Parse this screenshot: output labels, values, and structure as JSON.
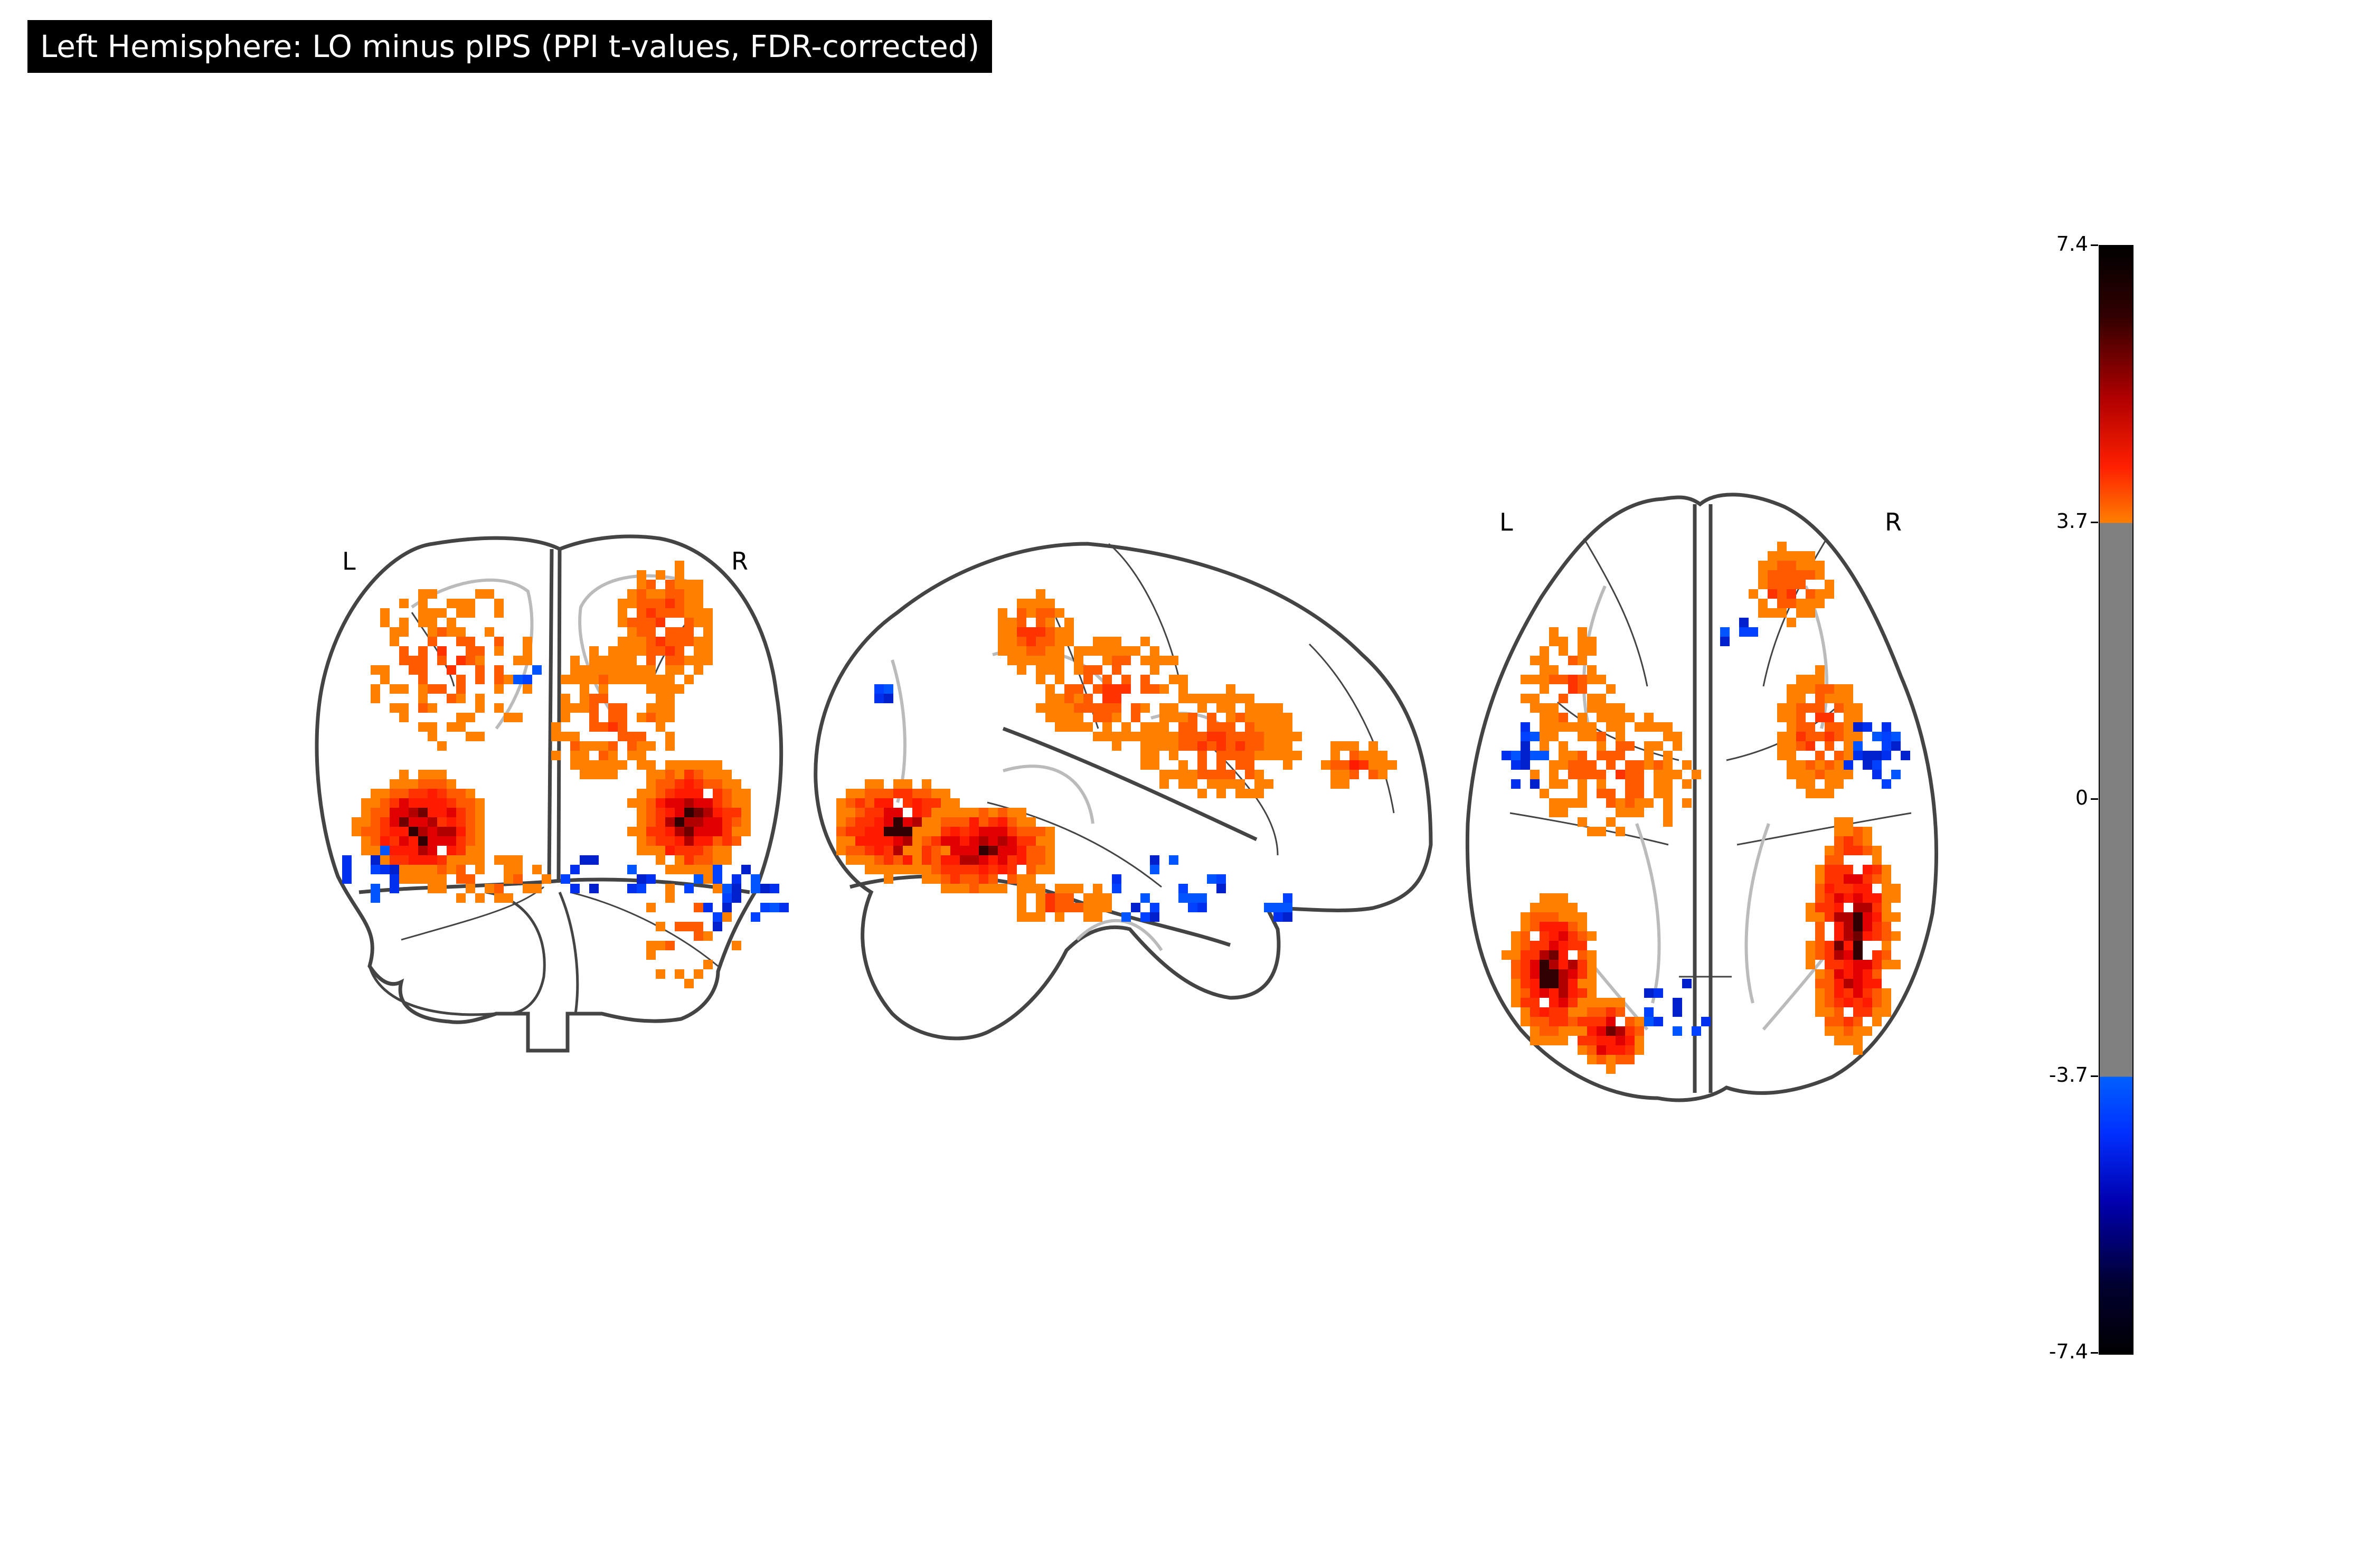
{
  "title": "Left Hemisphere: LO minus pIPS (PPI t-values, FDR-corrected)",
  "views": [
    {
      "id": "coronal",
      "orientation_labels": [
        "L",
        "R"
      ]
    },
    {
      "id": "sagittal",
      "orientation_labels": []
    },
    {
      "id": "axial",
      "orientation_labels": [
        "L",
        "R"
      ]
    }
  ],
  "colorbar": {
    "ticks": [
      "7.4",
      "3.7",
      "0",
      "-3.7",
      "-7.4"
    ],
    "vmin": -7.4,
    "vmax": 7.4,
    "threshold": 3.7,
    "colormap": "cold_hot",
    "positive_colors": [
      "#ff7f00",
      "#ff2000",
      "#b00000",
      "#300000",
      "#000000"
    ],
    "negative_colors": [
      "#0060ff",
      "#0030ff",
      "#0000b0",
      "#000030",
      "#000000"
    ],
    "threshold_color": "#808080"
  }
}
